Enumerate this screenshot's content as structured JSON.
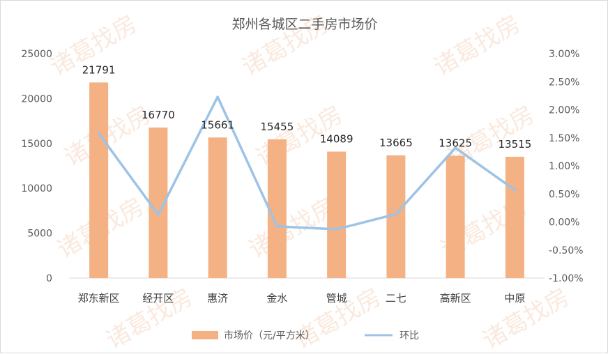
{
  "chart_data": {
    "type": "bar",
    "title": "郑州各城区二手房市场价",
    "categories": [
      "郑东新区",
      "经开区",
      "惠济",
      "金水",
      "管城",
      "二七",
      "高新区",
      "中原"
    ],
    "series": [
      {
        "name": "市场价（元/平方米）",
        "type": "bar",
        "axis": "left",
        "color": "#f4b183",
        "values": [
          21791,
          16770,
          15661,
          15455,
          14089,
          13665,
          13625,
          13515
        ]
      },
      {
        "name": "环比",
        "type": "line",
        "axis": "right",
        "color": "#9dc3e6",
        "values": [
          1.58,
          0.13,
          2.23,
          -0.08,
          -0.13,
          0.14,
          1.32,
          0.57
        ]
      }
    ],
    "y_left": {
      "min": 0,
      "max": 25000,
      "step": 5000,
      "tick_labels": [
        "0",
        "5000",
        "10000",
        "15000",
        "20000",
        "25000"
      ]
    },
    "y_right": {
      "min": -1.0,
      "max": 3.0,
      "step": 0.5,
      "tick_labels": [
        "-1.00%",
        "-0.50%",
        "0.00%",
        "0.50%",
        "1.00%",
        "1.50%",
        "2.00%",
        "2.50%",
        "3.00%"
      ]
    },
    "grid": false,
    "legend": "bottom"
  },
  "watermark": "诸葛找房"
}
